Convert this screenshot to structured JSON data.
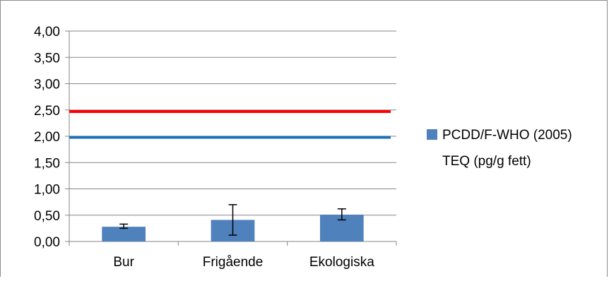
{
  "chart_data": {
    "type": "bar",
    "categories": [
      "Bur",
      "Frigående",
      "Ekologiska"
    ],
    "series": [
      {
        "name": "PCDD/F-WHO (2005) TEQ (pg/g fett)",
        "values": [
          0.28,
          0.41,
          0.51
        ],
        "error_low": [
          0.25,
          0.12,
          0.41
        ],
        "error_high": [
          0.33,
          0.7,
          0.62
        ],
        "color": "#4f81bd"
      }
    ],
    "reference_lines": [
      {
        "value": 2.47,
        "color": "#ff0000"
      },
      {
        "value": 1.98,
        "color": "#1f6fb5"
      }
    ],
    "y_ticks": [
      "0,00",
      "0,50",
      "1,00",
      "1,50",
      "2,00",
      "2,50",
      "3,00",
      "3,50",
      "4,00"
    ],
    "ylim": [
      0,
      4
    ],
    "grid": true,
    "legend_position": "right",
    "legend_lines": [
      "PCDD/F-WHO (2005)",
      "TEQ (pg/g fett)"
    ],
    "title": "",
    "xlabel": "",
    "ylabel": ""
  }
}
